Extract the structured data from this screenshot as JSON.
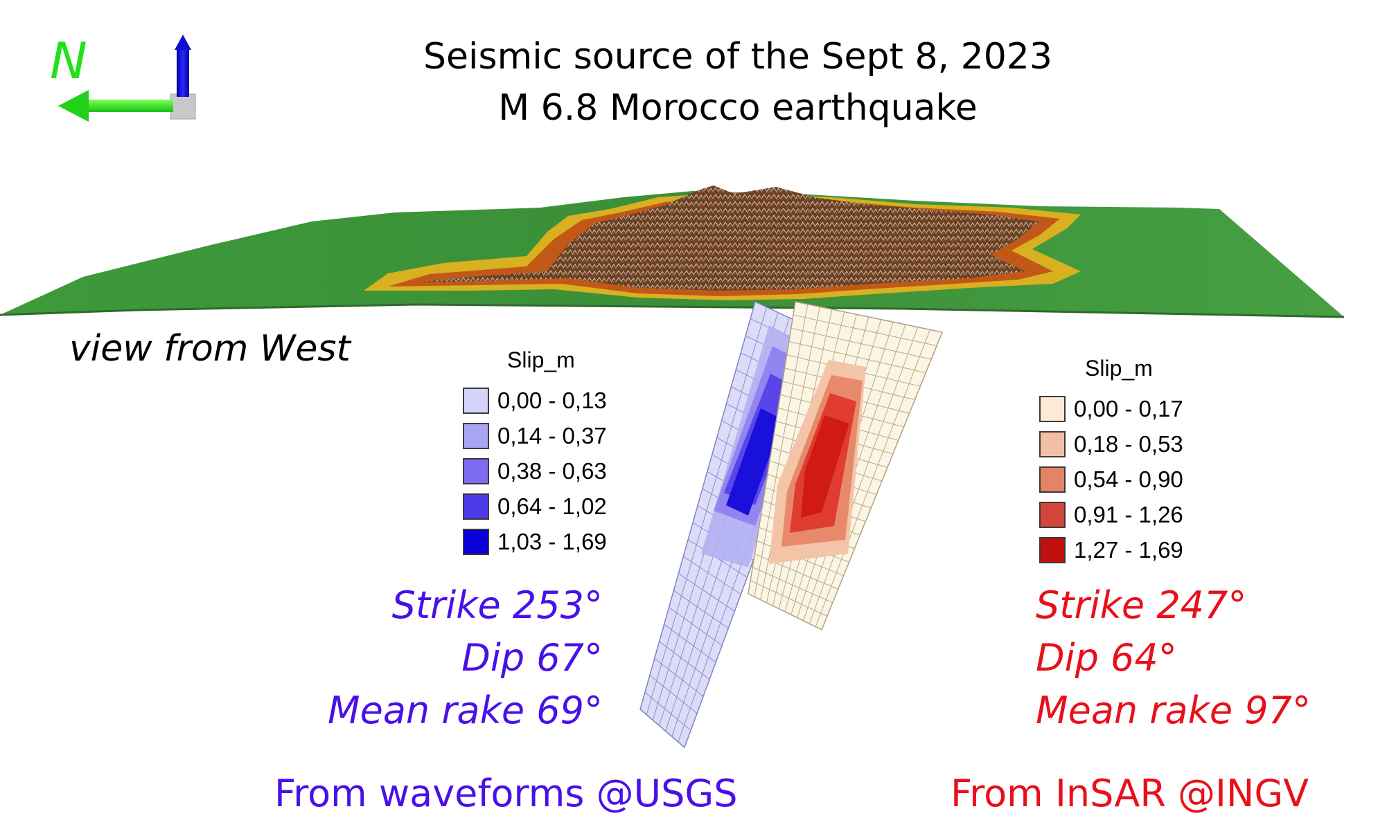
{
  "title": {
    "line1": "Seismic source of the Sept 8, 2023",
    "line2": "M 6.8 Morocco earthquake"
  },
  "compass": {
    "label": "N"
  },
  "view_label": "view from West",
  "usgs": {
    "legend": {
      "title": "Slip_m",
      "classes": [
        {
          "label": "0,00 - 0,13",
          "color": "#d4d4fa"
        },
        {
          "label": "0,14 - 0,37",
          "color": "#a9a4f4"
        },
        {
          "label": "0,38 - 0,63",
          "color": "#7e6cf0"
        },
        {
          "label": "0,64 - 1,02",
          "color": "#4f3aea"
        },
        {
          "label": "1,03 - 1,69",
          "color": "#0a00d8"
        }
      ]
    },
    "params": {
      "strike": "Strike 253°",
      "dip": "Dip 67°",
      "rake": "Mean rake 69°"
    },
    "source": "From waveforms @USGS",
    "color": "#4a10e8"
  },
  "ingv": {
    "legend": {
      "title": "Slip_m",
      "classes": [
        {
          "label": "0,00 - 0,17",
          "color": "#fde9d6"
        },
        {
          "label": "0,18 - 0,53",
          "color": "#f2bea4"
        },
        {
          "label": "0,54 - 0,90",
          "color": "#e38466"
        },
        {
          "label": "0,91 - 1,26",
          "color": "#d5463a"
        },
        {
          "label": "1,27 - 1,69",
          "color": "#c0100e"
        }
      ]
    },
    "params": {
      "strike": "Strike 247°",
      "dip": "Dip 64°",
      "rake": "Mean rake 97°"
    },
    "source": "From InSAR @INGV",
    "color": "#e8101a"
  }
}
